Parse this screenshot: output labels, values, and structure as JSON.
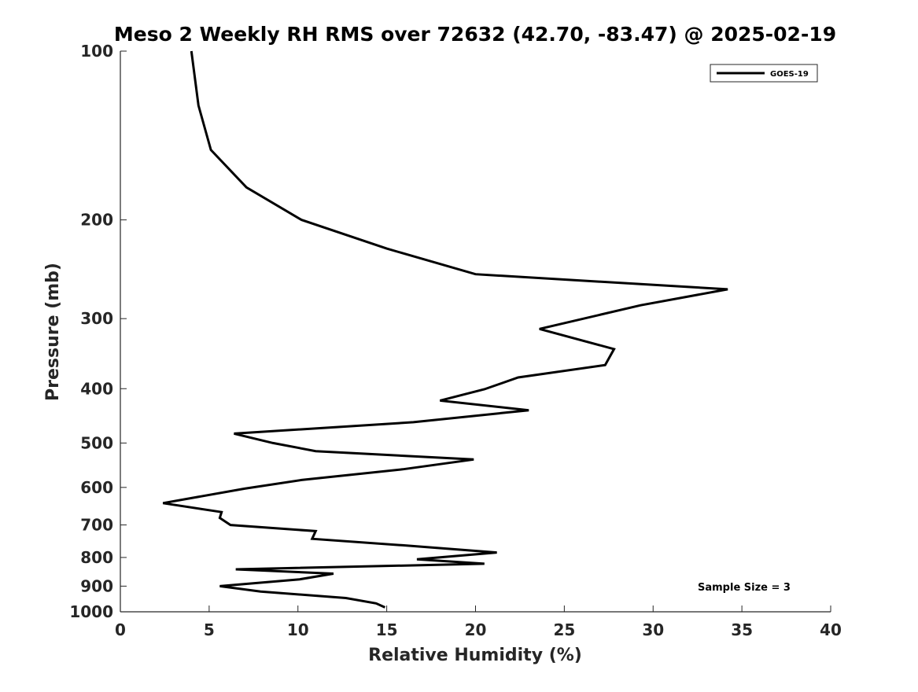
{
  "chart_data": {
    "type": "line",
    "title": "Meso 2 Weekly RH RMS over 72632 (42.70, -83.47) @ 2025-02-19",
    "xlabel": "Relative Humidity (%)",
    "ylabel": "Pressure (mb)",
    "xlim": [
      0,
      40
    ],
    "ylim": [
      1000,
      100
    ],
    "yscale": "log",
    "x_ticks": [
      0,
      5,
      10,
      15,
      20,
      25,
      30,
      35,
      40
    ],
    "y_ticks": [
      100,
      200,
      300,
      400,
      500,
      600,
      700,
      800,
      900,
      1000
    ],
    "grid": false,
    "legend": {
      "position": "top-right"
    },
    "annotation": "Sample Size = 3",
    "series": [
      {
        "name": "GOES-19",
        "color": "#000000",
        "points": [
          {
            "rh": 4.0,
            "p": 100
          },
          {
            "rh": 4.4,
            "p": 125
          },
          {
            "rh": 5.1,
            "p": 150
          },
          {
            "rh": 7.1,
            "p": 175
          },
          {
            "rh": 10.2,
            "p": 200
          },
          {
            "rh": 15.0,
            "p": 225
          },
          {
            "rh": 20.0,
            "p": 250
          },
          {
            "rh": 34.2,
            "p": 266
          },
          {
            "rh": 29.3,
            "p": 284
          },
          {
            "rh": 23.6,
            "p": 313
          },
          {
            "rh": 27.8,
            "p": 340
          },
          {
            "rh": 27.3,
            "p": 363
          },
          {
            "rh": 22.4,
            "p": 382
          },
          {
            "rh": 20.5,
            "p": 401
          },
          {
            "rh": 18.0,
            "p": 420
          },
          {
            "rh": 23.0,
            "p": 437
          },
          {
            "rh": 16.5,
            "p": 459
          },
          {
            "rh": 6.4,
            "p": 481
          },
          {
            "rh": 8.6,
            "p": 500
          },
          {
            "rh": 11.0,
            "p": 517
          },
          {
            "rh": 19.9,
            "p": 535
          },
          {
            "rh": 15.9,
            "p": 557
          },
          {
            "rh": 10.2,
            "p": 582
          },
          {
            "rh": 7.0,
            "p": 603
          },
          {
            "rh": 2.4,
            "p": 640
          },
          {
            "rh": 5.7,
            "p": 664
          },
          {
            "rh": 5.6,
            "p": 680
          },
          {
            "rh": 6.2,
            "p": 700
          },
          {
            "rh": 11.0,
            "p": 718
          },
          {
            "rh": 10.8,
            "p": 741
          },
          {
            "rh": 15.9,
            "p": 761
          },
          {
            "rh": 21.2,
            "p": 784
          },
          {
            "rh": 16.7,
            "p": 806
          },
          {
            "rh": 20.5,
            "p": 821
          },
          {
            "rh": 6.5,
            "p": 840
          },
          {
            "rh": 12.0,
            "p": 855
          },
          {
            "rh": 10.1,
            "p": 875
          },
          {
            "rh": 5.6,
            "p": 900
          },
          {
            "rh": 7.9,
            "p": 920
          },
          {
            "rh": 12.7,
            "p": 945
          },
          {
            "rh": 14.4,
            "p": 966
          },
          {
            "rh": 14.9,
            "p": 982
          }
        ]
      }
    ]
  }
}
